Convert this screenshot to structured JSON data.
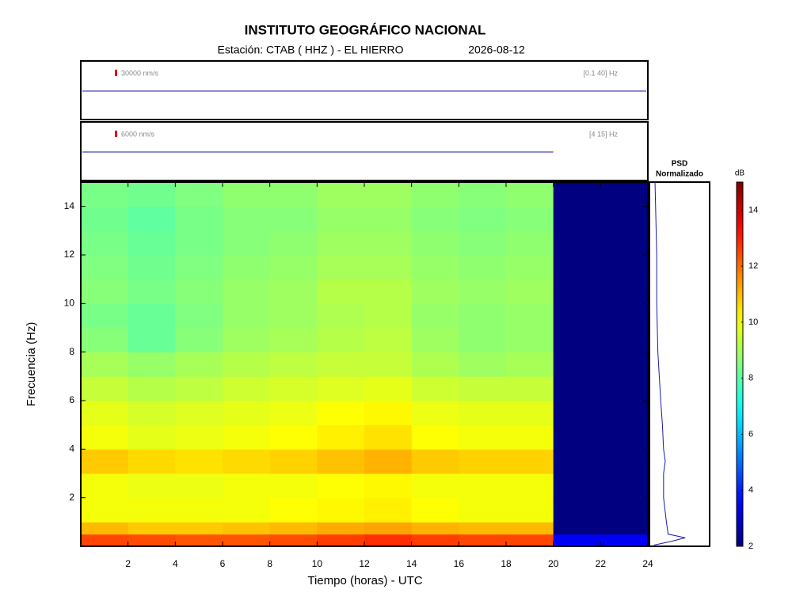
{
  "chart_data": {
    "type": "heatmap",
    "title": "INSTITUTO GEOGRÁFICO NACIONAL",
    "station": "Estación:  CTAB ( HHZ ) - EL HIERRO",
    "date": "2026-08-12",
    "traces": [
      {
        "scale_label": "30000 nm/s",
        "band_label": "[0.1 40] Hz"
      },
      {
        "scale_label": "6000 nm/s",
        "band_label": "[4 15] Hz"
      }
    ],
    "trace_color": "#1a1aa8",
    "xlabel": "Tiempo (horas) - UTC",
    "ylabel": "Frecuencia  (Hz)",
    "xlim": [
      0,
      24
    ],
    "xticks": [
      2,
      4,
      6,
      8,
      10,
      12,
      14,
      16,
      18,
      20,
      22,
      24
    ],
    "ylim": [
      0,
      15
    ],
    "yticks": [
      2,
      4,
      6,
      8,
      10,
      12,
      14
    ],
    "time_edges": [
      0,
      2,
      4,
      6,
      8,
      10,
      12,
      14,
      16,
      18,
      20,
      22,
      24
    ],
    "freq_edges": [
      0,
      0.5,
      1,
      2,
      3,
      4,
      5,
      6,
      7,
      8,
      9,
      10,
      11,
      12,
      13,
      14,
      15
    ],
    "values": [
      [
        12.5,
        11,
        10,
        10,
        10.8,
        10,
        9.8,
        9.4,
        9,
        8.6,
        8.4,
        8.6,
        8.5,
        8.4,
        8.3,
        8.4
      ],
      [
        12.4,
        10.8,
        10,
        9.9,
        10.6,
        9.8,
        9.6,
        9.2,
        8.8,
        8.2,
        8.2,
        8.4,
        8.3,
        8.2,
        8.1,
        8.3
      ],
      [
        12.3,
        10.8,
        10,
        9.9,
        10.5,
        9.9,
        9.7,
        9.3,
        9,
        8.6,
        8.5,
        8.6,
        8.5,
        8.4,
        8.4,
        8.5
      ],
      [
        12.3,
        10.9,
        10,
        10,
        10.6,
        10,
        9.8,
        9.5,
        9.2,
        8.9,
        8.8,
        8.8,
        8.7,
        8.6,
        8.6,
        8.7
      ],
      [
        12.4,
        11,
        10.1,
        10,
        10.7,
        10.1,
        9.9,
        9.6,
        9.3,
        9,
        8.9,
        8.9,
        8.8,
        8.7,
        8.6,
        8.7
      ],
      [
        12.6,
        11.2,
        10.2,
        10.1,
        10.9,
        10.3,
        10.1,
        9.7,
        9.4,
        9.2,
        9.1,
        9.2,
        9,
        8.9,
        8.8,
        8.9
      ],
      [
        12.8,
        11.3,
        10.3,
        10.2,
        11.1,
        10.5,
        10.2,
        9.8,
        9.4,
        9.3,
        9.2,
        9.2,
        9,
        8.9,
        8.8,
        8.9
      ],
      [
        12.6,
        11.1,
        10.1,
        10,
        10.8,
        10.1,
        9.9,
        9.5,
        9.1,
        8.9,
        8.8,
        8.9,
        8.8,
        8.7,
        8.6,
        8.7
      ],
      [
        12.5,
        11,
        10,
        10,
        10.7,
        10,
        9.8,
        9.4,
        8.9,
        8.7,
        8.7,
        8.8,
        8.7,
        8.6,
        8.5,
        8.6
      ],
      [
        12.5,
        11,
        10,
        10,
        10.7,
        10,
        9.8,
        9.4,
        9,
        8.8,
        8.8,
        8.9,
        8.8,
        8.7,
        8.6,
        8.7
      ],
      [
        3.5,
        2,
        2,
        2,
        2,
        2,
        2,
        2,
        2,
        2,
        2,
        2,
        2,
        2,
        2,
        2
      ],
      [
        3.5,
        2,
        2,
        2,
        2,
        2,
        2,
        2,
        2,
        2,
        2,
        2,
        2,
        2,
        2,
        2
      ]
    ],
    "colormap": "jet",
    "clim": [
      2,
      15
    ],
    "colorbar_label": "dB",
    "cticks": [
      2,
      4,
      6,
      8,
      10,
      12,
      14
    ],
    "psd": {
      "title": "PSD",
      "subtitle": "Normalizado",
      "color": "#1a1aa8",
      "freq": [
        0.05,
        0.2,
        0.35,
        0.5,
        1,
        2,
        3,
        3.5,
        4,
        5,
        6,
        8,
        10,
        12,
        14,
        15
      ],
      "values": [
        0.05,
        0.35,
        0.6,
        0.3,
        0.27,
        0.22,
        0.22,
        0.25,
        0.22,
        0.2,
        0.17,
        0.12,
        0.1,
        0.1,
        0.08,
        0.07
      ]
    }
  }
}
